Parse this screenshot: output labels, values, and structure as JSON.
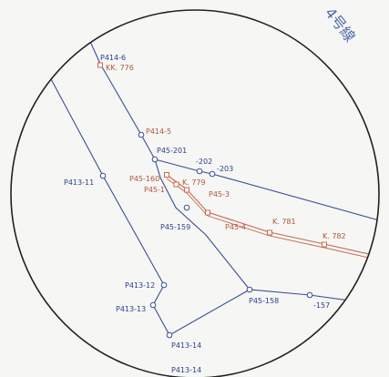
{
  "colors": {
    "background": "#f6f6f4",
    "circle": "#222222",
    "blue_line": "#3a4f95",
    "red_line": "#c46a4e",
    "blue_text": "#2a3f8f",
    "red_text": "#b0553a"
  },
  "route_label": "4号線",
  "points": [
    {
      "id": "p414_6",
      "label": "P414-6"
    },
    {
      "id": "kk776",
      "label": "KK. 776"
    },
    {
      "id": "p414_5",
      "label": "P414-5"
    },
    {
      "id": "p45_201",
      "label": "P45-201"
    },
    {
      "id": "n202",
      "label": "-202"
    },
    {
      "id": "n203",
      "label": "-203"
    },
    {
      "id": "p413_11",
      "label": "P413-11"
    },
    {
      "id": "p45_160",
      "label": "P45-160"
    },
    {
      "id": "k779",
      "label": "K. 779"
    },
    {
      "id": "p45_1",
      "label": "P45-1"
    },
    {
      "id": "p45_3",
      "label": "P45-3"
    },
    {
      "id": "p45_159",
      "label": "P45-159"
    },
    {
      "id": "p45_4",
      "label": "P45-4"
    },
    {
      "id": "k781",
      "label": "K. 781"
    },
    {
      "id": "k782",
      "label": "K. 782"
    },
    {
      "id": "p413_12",
      "label": "P413-12"
    },
    {
      "id": "p413_13",
      "label": "P413-13"
    },
    {
      "id": "p45_158",
      "label": "P45-158"
    },
    {
      "id": "n157",
      "label": "-157"
    },
    {
      "id": "p413_14",
      "label": "P413-14"
    },
    {
      "id": "p413_14b",
      "label": "P413-14"
    }
  ]
}
